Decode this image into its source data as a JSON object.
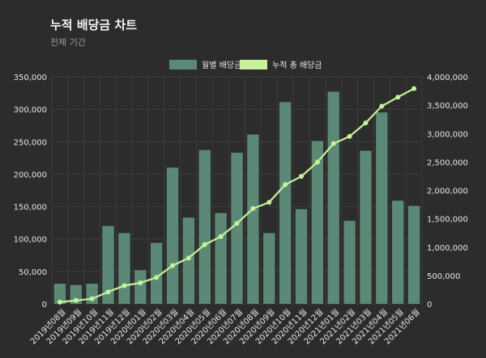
{
  "colors": {
    "background": "#2c2c2c",
    "bar": "#5a8a75",
    "line": "#c8f29a",
    "text": "#e6e6e6",
    "grid": "#3c3c3c"
  },
  "chart_data": {
    "type": "bar",
    "title": "누적 배당금 차트",
    "subtitle": "전체 기간",
    "legend_position": "top-center",
    "grid": true,
    "categories": [
      "2019년08월",
      "2019년09월",
      "2019년10월",
      "2019년11월",
      "2019년12월",
      "2020년01월",
      "2020년02월",
      "2020년03월",
      "2020년04월",
      "2020년05월",
      "2020년06월",
      "2020년07월",
      "2020년08월",
      "2020년09월",
      "2020년10월",
      "2020년11월",
      "2020년12월",
      "2021년01월",
      "2021년02월",
      "2021년03월",
      "2021년04월",
      "2021년05월",
      "2021년06월"
    ],
    "series": [
      {
        "name": "월별 배당금",
        "type": "bar",
        "axis": "left",
        "values": [
          31000,
          29000,
          31000,
          120000,
          109000,
          52000,
          94000,
          210000,
          133000,
          237000,
          140000,
          233000,
          261000,
          109000,
          311000,
          146000,
          251000,
          327000,
          128000,
          236000,
          295000,
          159000,
          151000
        ]
      },
      {
        "name": "누적 총 배당금",
        "type": "line",
        "axis": "right",
        "values": [
          30000,
          60000,
          90000,
          210000,
          320000,
          370000,
          465000,
          675000,
          808000,
          1045000,
          1185000,
          1418000,
          1679000,
          1788000,
          2099000,
          2245000,
          2496000,
          2823000,
          2951000,
          3187000,
          3482000,
          3641000,
          3792000
        ]
      }
    ],
    "ylim_left": [
      0,
      350000
    ],
    "yticks_left": [
      "0",
      "50,000",
      "100,000",
      "150,000",
      "200,000",
      "250,000",
      "300,000",
      "350,000"
    ],
    "ylim_right": [
      0,
      4000000
    ],
    "yticks_right": [
      "0",
      "500,000",
      "1,000,000",
      "1,500,000",
      "2,000,000",
      "2,500,000",
      "3,000,000",
      "3,500,000",
      "4,000,000"
    ]
  }
}
